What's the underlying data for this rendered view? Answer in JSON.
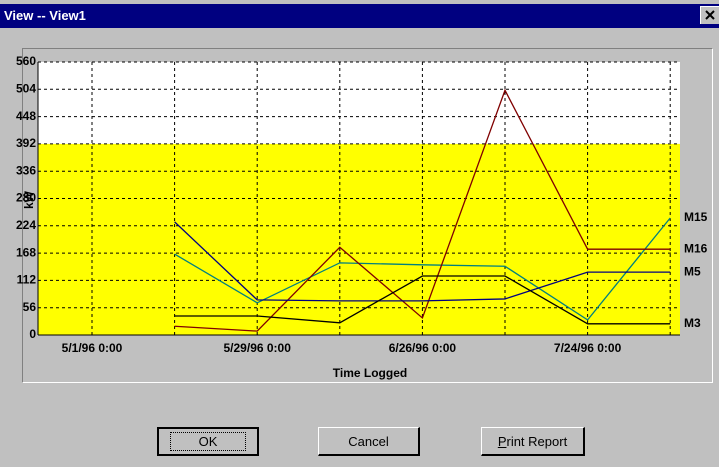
{
  "window": {
    "title": "View -- View1"
  },
  "chart_data": {
    "type": "line",
    "ylabel": "kW",
    "xlabel": "Time Logged",
    "categories": [
      "5/1/96 0:00",
      null,
      "5/29/96 0:00",
      null,
      "6/26/96 0:00",
      null,
      "7/24/96 0:00",
      null
    ],
    "series": [
      {
        "name": "M15",
        "color": "#008080",
        "values": [
          null,
          166,
          66,
          148,
          144,
          141,
          31,
          240
        ]
      },
      {
        "name": "M16",
        "color": "#800000",
        "values": [
          null,
          18,
          8,
          180,
          35,
          502,
          176,
          176
        ]
      },
      {
        "name": "M5",
        "color": "#000080",
        "values": [
          null,
          232,
          72,
          70,
          70,
          74,
          129,
          129
        ]
      },
      {
        "name": "M3",
        "color": "#000000",
        "values": [
          null,
          39,
          39,
          25,
          121,
          121,
          23,
          23
        ]
      }
    ],
    "ylim": [
      0,
      560
    ],
    "yticks": [
      0,
      56,
      112,
      168,
      224,
      280,
      336,
      392,
      448,
      504,
      560
    ],
    "grid": true,
    "shaded_range": [
      0,
      392
    ],
    "shaded_color": "#ffff00",
    "series_labels": "end"
  },
  "buttons": [
    "OK",
    "Cancel",
    "Print Report"
  ]
}
